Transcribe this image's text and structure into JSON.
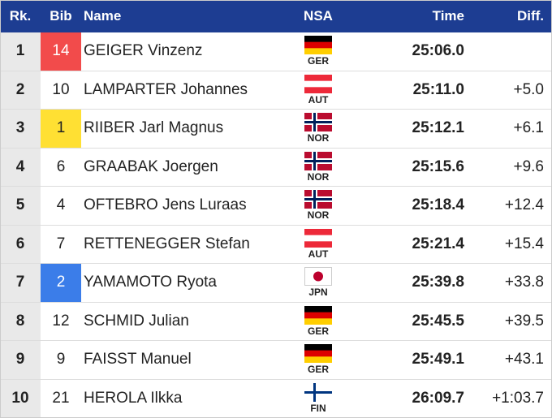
{
  "table": {
    "columns": [
      "Rk.",
      "Bib",
      "Name",
      "NSA",
      "Time",
      "Diff."
    ],
    "rows": [
      {
        "rank": 1,
        "bib": 14,
        "bib_color": "#f24b4b",
        "name": "GEIGER Vinzenz",
        "nsa": "GER",
        "time": "25:06.0"
      },
      {
        "rank": 2,
        "bib": 10,
        "name": "LAMPARTER Johannes",
        "nsa": "AUT",
        "time": "25:11.0",
        "diff": "+5.0"
      },
      {
        "rank": 3,
        "bib": 1,
        "bib_color": "#ffe033",
        "name": "RIIBER Jarl Magnus",
        "nsa": "NOR",
        "time": "25:12.1",
        "diff": "+6.1"
      },
      {
        "rank": 4,
        "bib": 6,
        "name": "GRAABAK Joergen",
        "nsa": "NOR",
        "time": "25:15.6",
        "diff": "+9.6"
      },
      {
        "rank": 5,
        "bib": 4,
        "name": "OFTEBRO Jens Luraas",
        "nsa": "NOR",
        "time": "25:18.4",
        "diff": "+12.4"
      },
      {
        "rank": 6,
        "bib": 7,
        "name": "RETTENEGGER Stefan",
        "nsa": "AUT",
        "time": "25:21.4",
        "diff": "+15.4"
      },
      {
        "rank": 7,
        "bib": 2,
        "bib_color": "#3b7de9",
        "name": "YAMAMOTO Ryota",
        "nsa": "JPN",
        "time": "25:39.8",
        "diff": "+33.8"
      },
      {
        "rank": 8,
        "bib": 12,
        "name": "SCHMID Julian",
        "nsa": "GER",
        "time": "25:45.5",
        "diff": "+39.5"
      },
      {
        "rank": 9,
        "bib": 9,
        "name": "FAISST Manuel",
        "nsa": "GER",
        "time": "25:49.1",
        "diff": "+43.1"
      },
      {
        "rank": 10,
        "bib": 21,
        "name": "HEROLA Ilkka",
        "nsa": "FIN",
        "time": "26:09.7",
        "diff": "+1:03.7"
      }
    ],
    "flags": {
      "GER": {
        "style": "stripes",
        "colors": [
          "#000000",
          "#dd0000",
          "#ffce00"
        ]
      },
      "AUT": {
        "style": "stripes",
        "colors": [
          "#ed2939",
          "#ffffff",
          "#ed2939"
        ]
      },
      "NOR": {
        "style": "cross",
        "colors": [
          "#ba0c2f",
          "#ffffff",
          "#00205b"
        ]
      },
      "JPN": {
        "style": "disc",
        "colors": [
          "#ffffff",
          "#bc002d"
        ]
      },
      "FIN": {
        "style": "cross",
        "colors": [
          "#ffffff",
          "#ffffff",
          "#003580"
        ]
      }
    }
  }
}
